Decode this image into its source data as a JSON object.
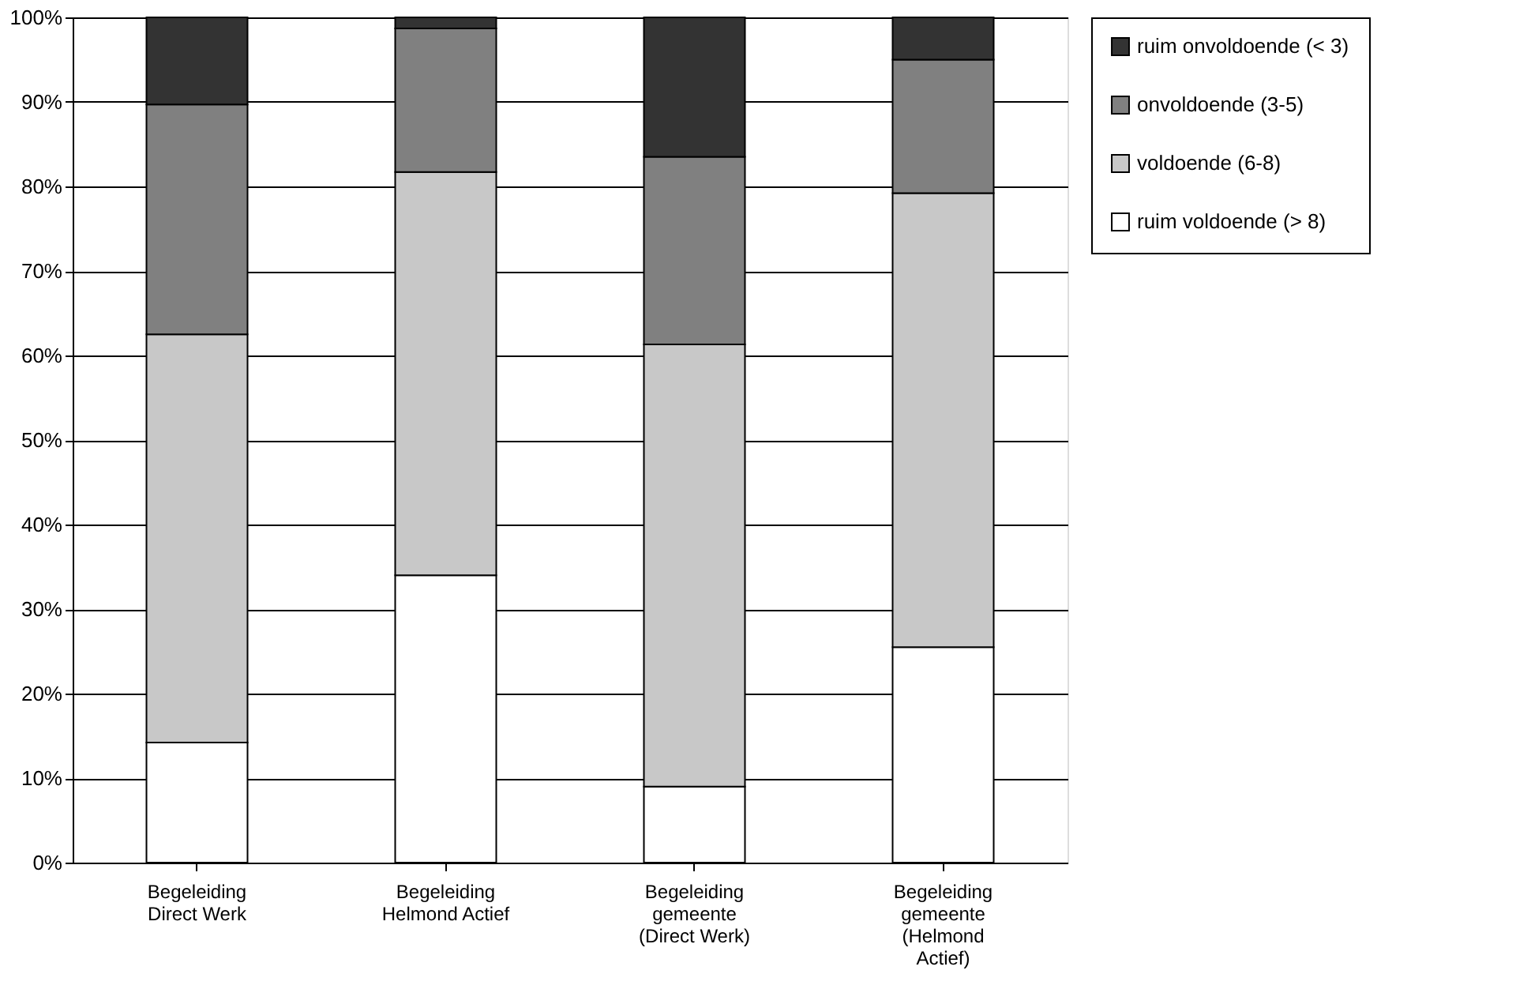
{
  "chart_data": {
    "type": "bar",
    "stacked": true,
    "categories": [
      "Begeleiding Direct Werk",
      "Begeleiding Helmond Actief",
      "Begeleiding gemeente (Direct Werk)",
      "Begeleiding gemeente (Helmond Actief)"
    ],
    "series": [
      {
        "name": "ruim voldoende (> 8)",
        "color": "#ffffff",
        "values": [
          14.2,
          34,
          9,
          25.5
        ]
      },
      {
        "name": "voldoende (6-8)",
        "color": "#c8c8c8",
        "values": [
          48.3,
          47.7,
          52.3,
          53.7
        ]
      },
      {
        "name": "onvoldoende (3-5)",
        "color": "#808080",
        "values": [
          27.2,
          17,
          22.2,
          15.8
        ]
      },
      {
        "name": "ruim onvoldoende (< 3)",
        "color": "#333333",
        "values": [
          10.3,
          1.3,
          16.5,
          5
        ]
      }
    ],
    "ylim": [
      0,
      100
    ],
    "yticks": [
      {
        "value": 0,
        "label": "0%"
      },
      {
        "value": 10,
        "label": "10%"
      },
      {
        "value": 20,
        "label": "20%"
      },
      {
        "value": 30,
        "label": "30%"
      },
      {
        "value": 40,
        "label": "40%"
      },
      {
        "value": 50,
        "label": "50%"
      },
      {
        "value": 60,
        "label": "60%"
      },
      {
        "value": 70,
        "label": "70%"
      },
      {
        "value": 80,
        "label": "80%"
      },
      {
        "value": 90,
        "label": "90%"
      },
      {
        "value": 100,
        "label": "100%"
      }
    ],
    "grid": "y",
    "legend": "right"
  }
}
